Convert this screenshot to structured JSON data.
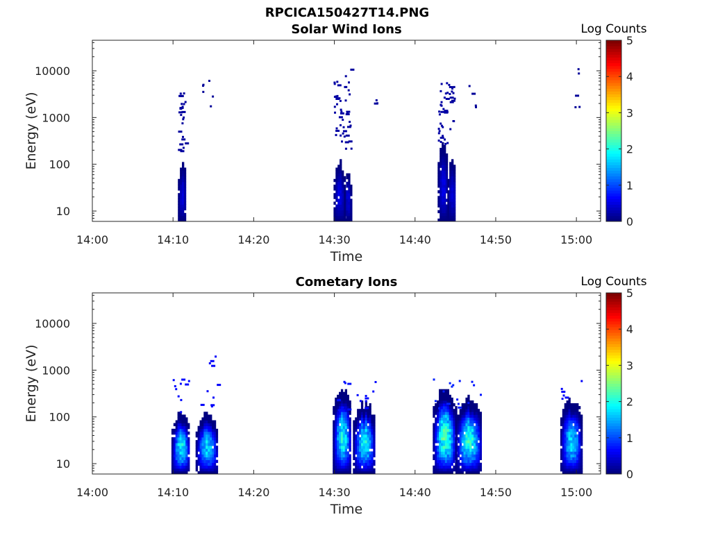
{
  "figure_title": "RPCICA150427T14.PNG",
  "chart_data": [
    {
      "type": "heatmap",
      "title": "Solar Wind Ions",
      "xlabel": "Time",
      "ylabel": "Energy (eV)",
      "y_scale": "log",
      "ylim": [
        6,
        45000
      ],
      "xlim": [
        "14:00",
        "15:03"
      ],
      "x_ticks": [
        "14:00",
        "14:10",
        "14:20",
        "14:30",
        "14:40",
        "14:50",
        "15:00"
      ],
      "y_ticks": [
        "10",
        "100",
        "1000",
        "10000"
      ],
      "colorbar": {
        "label": "Log Counts",
        "range": [
          0,
          5
        ],
        "ticks": [
          "0",
          "1",
          "2",
          "3",
          "4",
          "5"
        ],
        "colormap": "jet"
      },
      "bursts": [
        {
          "start_min": 10.6,
          "end_min": 11.5,
          "emax_main": 90,
          "scatter_min": 150,
          "scatter_max": 3500,
          "peak": 0.5,
          "scatter_density": 28,
          "seed": 11
        },
        {
          "start_min": 13.3,
          "end_min": 15.0,
          "emax_main": 0,
          "scatter_min": 1500,
          "scatter_max": 6000,
          "peak": 0.4,
          "scatter_density": 6,
          "seed": 12
        },
        {
          "start_min": 29.9,
          "end_min": 31.2,
          "emax_main": 90,
          "scatter_min": 300,
          "scatter_max": 6000,
          "peak": 0.6,
          "scatter_density": 30,
          "seed": 13
        },
        {
          "start_min": 31.2,
          "end_min": 32.0,
          "emax_main": 60,
          "scatter_min": 150,
          "scatter_max": 12000,
          "peak": 0.5,
          "scatter_density": 18,
          "seed": 14
        },
        {
          "start_min": 42.8,
          "end_min": 44.0,
          "emax_main": 200,
          "scatter_min": 250,
          "scatter_max": 6000,
          "peak": 0.6,
          "scatter_density": 30,
          "seed": 15
        },
        {
          "start_min": 44.0,
          "end_min": 45.0,
          "emax_main": 90,
          "scatter_min": 500,
          "scatter_max": 5000,
          "peak": 0.5,
          "scatter_density": 14,
          "seed": 16
        },
        {
          "start_min": 46.5,
          "end_min": 47.5,
          "emax_main": 0,
          "scatter_min": 1500,
          "scatter_max": 5000,
          "peak": 0.4,
          "scatter_density": 4,
          "seed": 17
        },
        {
          "start_min": 59.5,
          "end_min": 60.4,
          "emax_main": 0,
          "scatter_min": 1000,
          "scatter_max": 12000,
          "peak": 0.4,
          "scatter_density": 5,
          "seed": 18
        },
        {
          "start_min": 34.8,
          "end_min": 35.3,
          "emax_main": 0,
          "scatter_min": 1800,
          "scatter_max": 2600,
          "peak": 0.5,
          "scatter_density": 3,
          "seed": 19
        }
      ]
    },
    {
      "type": "heatmap",
      "title": "Cometary Ions",
      "xlabel": "Time",
      "ylabel": "Energy (eV)",
      "y_scale": "log",
      "ylim": [
        6,
        45000
      ],
      "xlim": [
        "14:00",
        "15:03"
      ],
      "x_ticks": [
        "14:00",
        "14:10",
        "14:20",
        "14:30",
        "14:40",
        "14:50",
        "15:00"
      ],
      "y_ticks": [
        "10",
        "100",
        "1000",
        "10000"
      ],
      "colorbar": {
        "label": "Log Counts",
        "range": [
          0,
          5
        ],
        "ticks": [
          "0",
          "1",
          "2",
          "3",
          "4",
          "5"
        ],
        "colormap": "jet"
      },
      "bursts": [
        {
          "start_min": 9.8,
          "end_min": 12.0,
          "emax_main": 100,
          "scatter_min": 120,
          "scatter_max": 700,
          "peak": 2.2,
          "scatter_density": 10,
          "seed": 21
        },
        {
          "start_min": 12.8,
          "end_min": 15.5,
          "emax_main": 90,
          "scatter_min": 120,
          "scatter_max": 2500,
          "peak": 2.0,
          "scatter_density": 10,
          "seed": 22
        },
        {
          "start_min": 29.8,
          "end_min": 32.0,
          "emax_main": 300,
          "scatter_min": 120,
          "scatter_max": 650,
          "peak": 2.3,
          "scatter_density": 8,
          "seed": 23
        },
        {
          "start_min": 32.3,
          "end_min": 35.0,
          "emax_main": 150,
          "scatter_min": 150,
          "scatter_max": 550,
          "peak": 2.2,
          "scatter_density": 8,
          "seed": 24
        },
        {
          "start_min": 42.2,
          "end_min": 45.0,
          "emax_main": 300,
          "scatter_min": 150,
          "scatter_max": 700,
          "peak": 2.6,
          "scatter_density": 8,
          "seed": 25
        },
        {
          "start_min": 45.0,
          "end_min": 48.2,
          "emax_main": 200,
          "scatter_min": 150,
          "scatter_max": 900,
          "peak": 2.4,
          "scatter_density": 8,
          "seed": 26
        },
        {
          "start_min": 58.0,
          "end_min": 60.6,
          "emax_main": 190,
          "scatter_min": 150,
          "scatter_max": 800,
          "peak": 2.0,
          "scatter_density": 6,
          "seed": 27
        }
      ]
    }
  ]
}
